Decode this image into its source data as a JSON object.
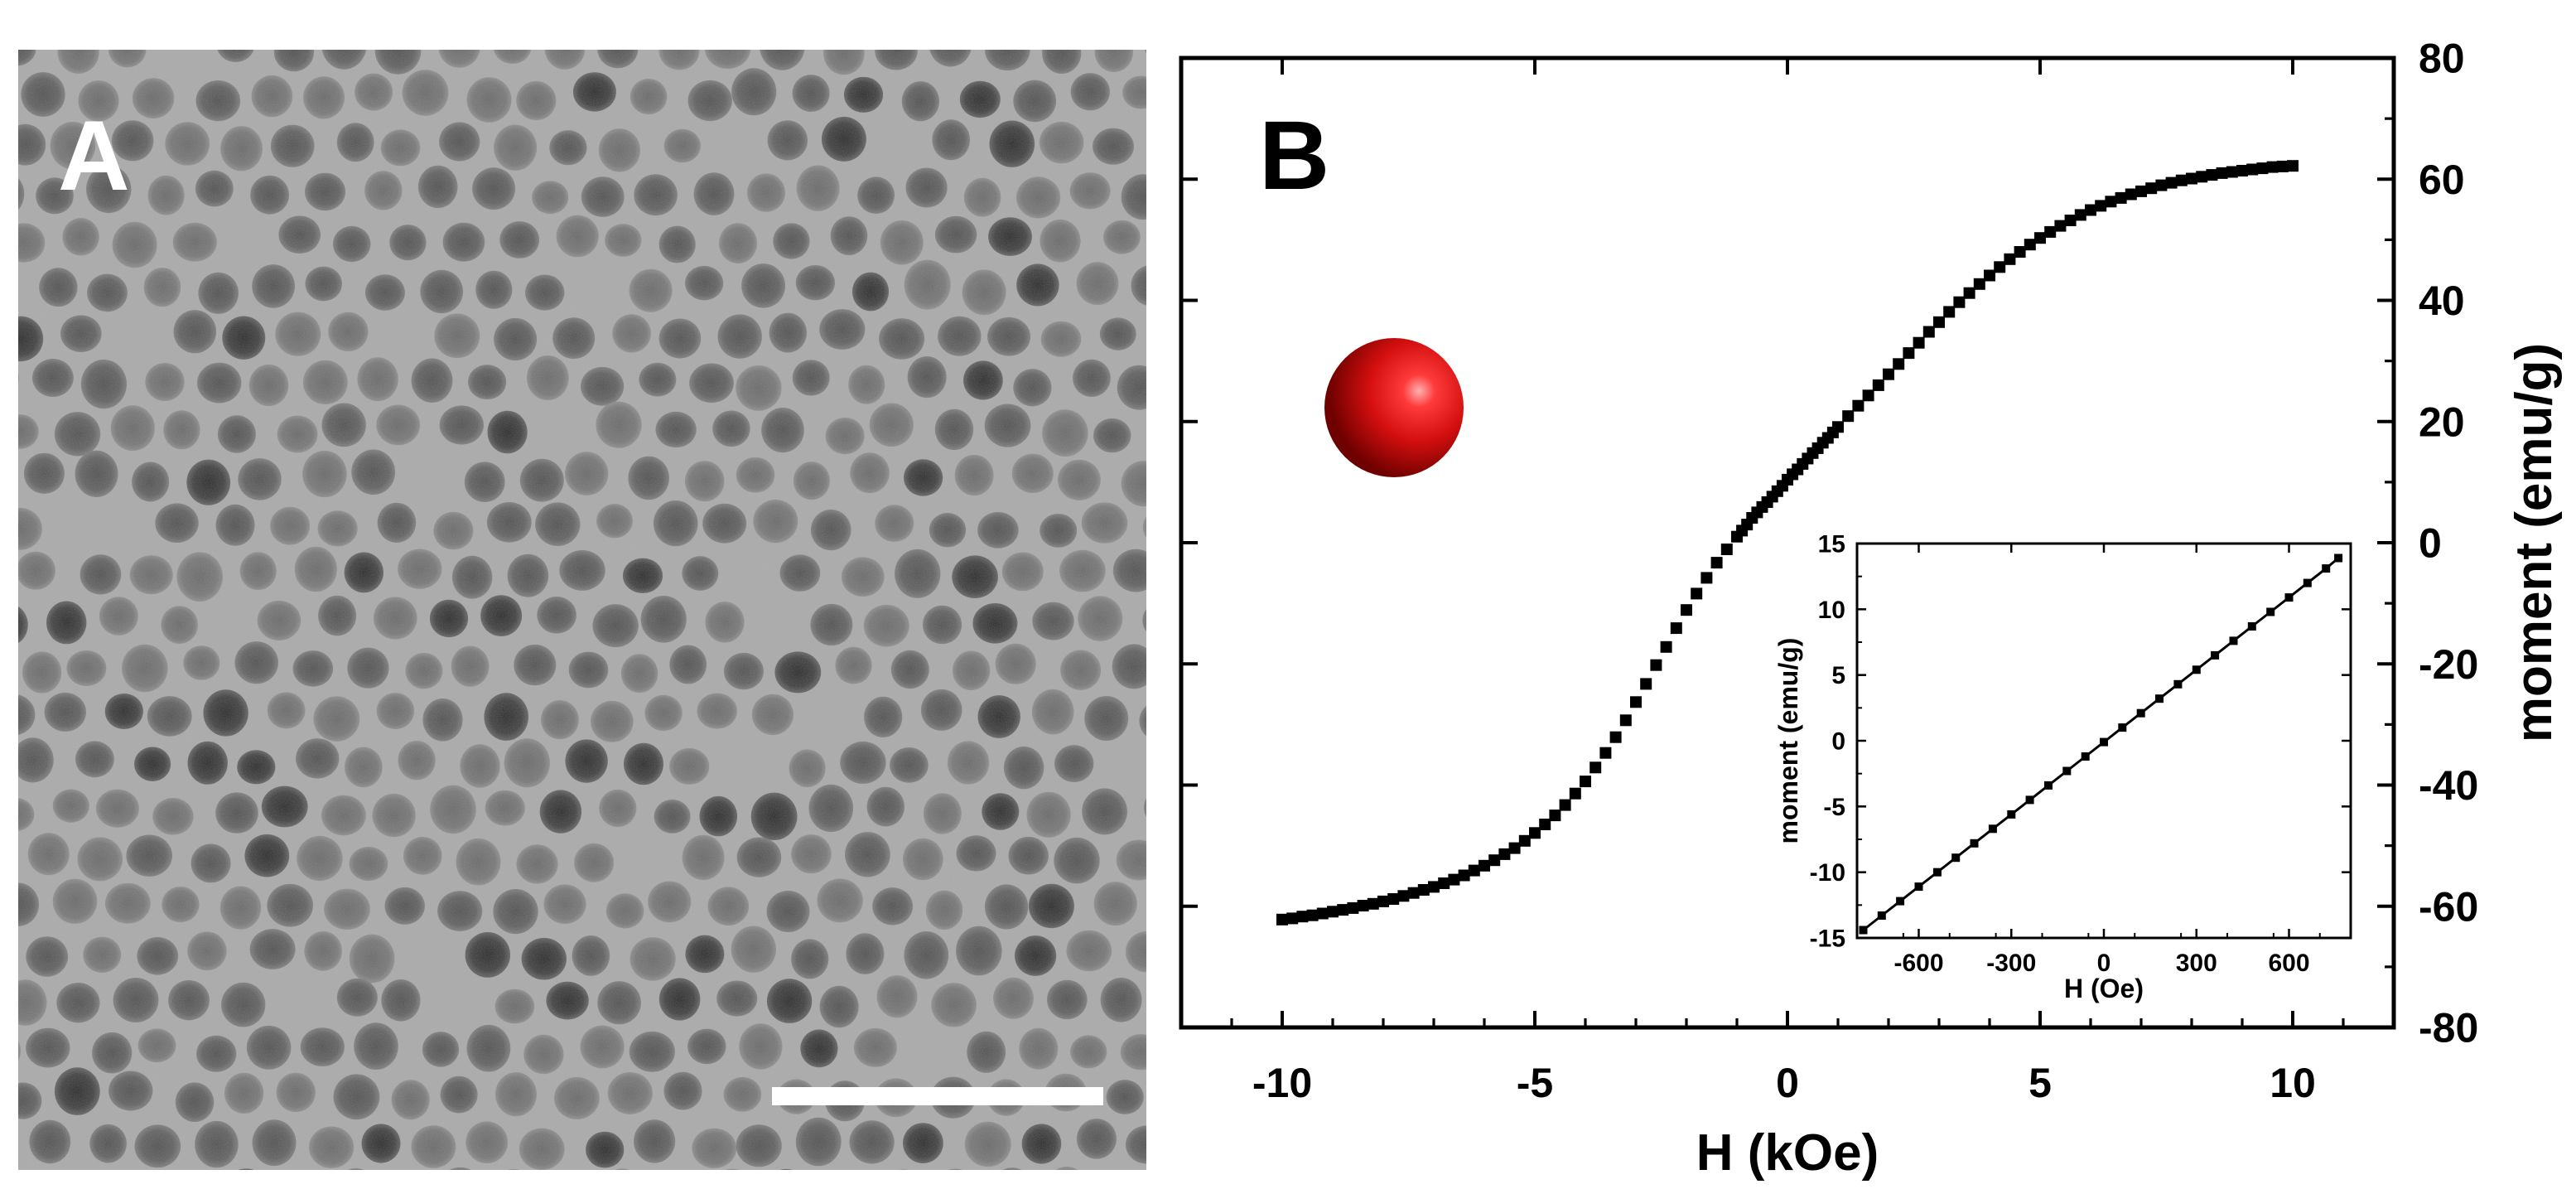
{
  "panel_a": {
    "label": "A"
  },
  "panel_b": {
    "label": "B"
  },
  "chart_data": [
    {
      "type": "scatter",
      "xlabel": "H (kOe)",
      "ylabel": "moment (emu/g)",
      "xlim": [
        -12,
        12
      ],
      "ylim": [
        -80,
        80
      ],
      "xticks": [
        "-10",
        "-5",
        "0",
        "5",
        "10"
      ],
      "xtick_values": [
        -10,
        -5,
        0,
        5,
        10
      ],
      "yticks": [
        "80",
        "60",
        "40",
        "20",
        "0",
        "-20",
        "-40",
        "-60",
        "-80"
      ],
      "ytick_values": [
        80,
        60,
        40,
        20,
        0,
        -20,
        -40,
        -60,
        -80
      ],
      "y_axis_side": "right",
      "marker": "square",
      "color": "#000000",
      "series": [
        {
          "x": [
            -10,
            -9.8,
            -9.6,
            -9.4,
            -9.2,
            -9,
            -8.8,
            -8.6,
            -8.4,
            -8.2,
            -8,
            -7.8,
            -7.6,
            -7.4,
            -7.2,
            -7,
            -6.8,
            -6.6,
            -6.4,
            -6.2,
            -6,
            -5.8,
            -5.6,
            -5.4,
            -5.2,
            -5,
            -4.8,
            -4.6,
            -4.4,
            -4.2,
            -4,
            -3.8,
            -3.6,
            -3.4,
            -3.2,
            -3,
            -2.8,
            -2.6,
            -2.4,
            -2.2,
            -2,
            -1.8,
            -1.6,
            -1.4,
            -1.2,
            -1,
            -0.9,
            -0.8,
            -0.7,
            -0.6,
            -0.5,
            -0.4,
            -0.3,
            -0.2,
            -0.1,
            0,
            0.1,
            0.2,
            0.3,
            0.4,
            0.5,
            0.6,
            0.7,
            0.8,
            0.9,
            1,
            1.2,
            1.4,
            1.6,
            1.8,
            2,
            2.2,
            2.4,
            2.6,
            2.8,
            3,
            3.2,
            3.4,
            3.6,
            3.8,
            4,
            4.2,
            4.4,
            4.6,
            4.8,
            5,
            5.2,
            5.4,
            5.6,
            5.8,
            6,
            6.2,
            6.4,
            6.6,
            6.8,
            7,
            7.2,
            7.4,
            7.6,
            7.8,
            8,
            8.2,
            8.4,
            8.6,
            8.8,
            9,
            9.2,
            9.4,
            9.6,
            9.8,
            10
          ],
          "y": [
            -62.2,
            -62.0,
            -61.7,
            -61.5,
            -61.2,
            -60.9,
            -60.6,
            -60.3,
            -59.9,
            -59.6,
            -59.2,
            -58.8,
            -58.3,
            -57.8,
            -57.3,
            -56.8,
            -56.2,
            -55.6,
            -54.9,
            -54.1,
            -53.3,
            -52.4,
            -51.4,
            -50.4,
            -49.2,
            -47.9,
            -46.5,
            -45.0,
            -43.3,
            -41.4,
            -39.4,
            -37.1,
            -34.7,
            -32.1,
            -29.3,
            -26.3,
            -23.3,
            -20.2,
            -17.2,
            -14.1,
            -11.1,
            -8.4,
            -5.8,
            -3.3,
            -1.1,
            1.0,
            2.0,
            3.0,
            4.1,
            5.0,
            5.9,
            6.7,
            7.6,
            8.5,
            9.4,
            10.4,
            11.3,
            12.1,
            13.0,
            13.9,
            14.8,
            15.6,
            16.5,
            17.3,
            18.2,
            19.1,
            20.9,
            22.6,
            24.3,
            26.0,
            27.8,
            29.5,
            31.3,
            33.0,
            34.8,
            36.4,
            38.1,
            39.7,
            41.2,
            42.7,
            44.1,
            45.5,
            46.8,
            48.0,
            49.2,
            50.3,
            51.3,
            52.3,
            53.2,
            54.1,
            54.9,
            55.6,
            56.3,
            56.9,
            57.5,
            58.0,
            58.5,
            59.0,
            59.4,
            59.8,
            60.1,
            60.4,
            60.7,
            61.0,
            61.2,
            61.4,
            61.6,
            61.8,
            62.0,
            62.1,
            62.2
          ]
        }
      ]
    },
    {
      "type": "scatter",
      "role": "inset",
      "xlabel": "H (Oe)",
      "ylabel": "moment (emu/g)",
      "xlim": [
        -800,
        800
      ],
      "ylim": [
        -15,
        15
      ],
      "xticks": [
        "-600",
        "-300",
        "0",
        "300",
        "600"
      ],
      "xtick_values": [
        -600,
        -300,
        0,
        300,
        600
      ],
      "yticks": [
        "15",
        "10",
        "5",
        "0",
        "-5",
        "-10",
        "-15"
      ],
      "ytick_values": [
        15,
        10,
        5,
        0,
        -5,
        -10,
        -15
      ],
      "y_axis_side": "left",
      "marker": "square",
      "line": true,
      "color": "#000000",
      "series": [
        {
          "x": [
            -780,
            -720,
            -660,
            -600,
            -540,
            -480,
            -420,
            -360,
            -300,
            -240,
            -180,
            -120,
            -60,
            0,
            60,
            120,
            180,
            240,
            300,
            360,
            420,
            480,
            540,
            600,
            660,
            720,
            760
          ],
          "y": [
            -14.4,
            -13.3,
            -12.2,
            -11.1,
            -10.0,
            -8.9,
            -7.8,
            -6.7,
            -5.6,
            -4.5,
            -3.4,
            -2.3,
            -1.2,
            -0.1,
            1.0,
            2.1,
            3.2,
            4.3,
            5.4,
            6.5,
            7.6,
            8.7,
            9.8,
            10.9,
            12.0,
            13.1,
            13.9
          ]
        }
      ]
    }
  ]
}
